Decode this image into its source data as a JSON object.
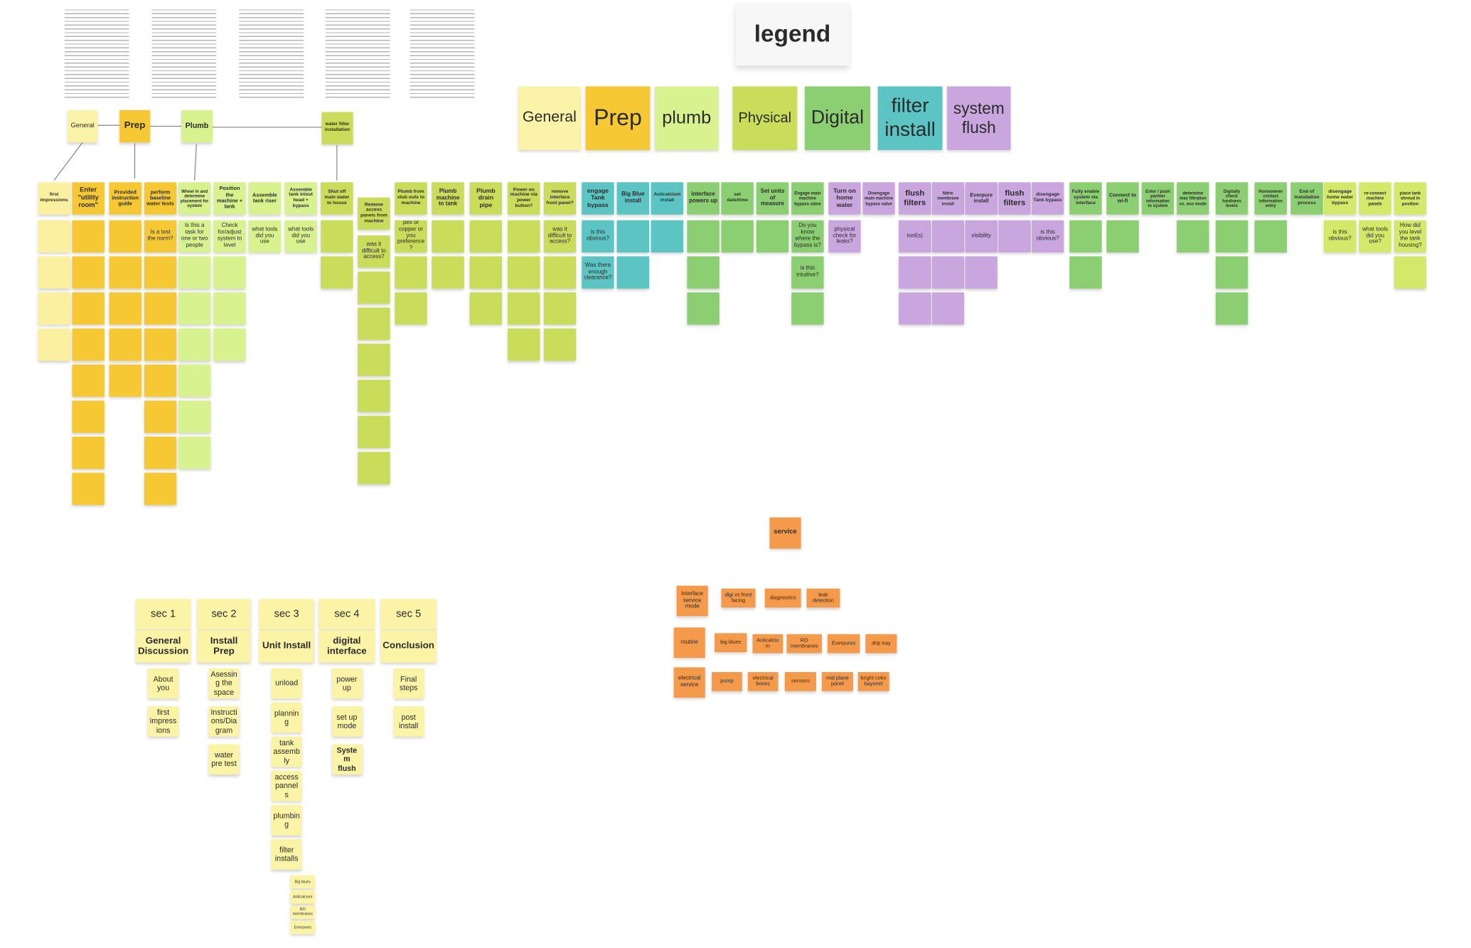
{
  "legend": {
    "title": "legend",
    "items": [
      {
        "label": "General",
        "color": "#fbf4a8"
      },
      {
        "label": "Prep",
        "color": "#f6c934"
      },
      {
        "label": "plumb",
        "color": "#d7f28e"
      },
      {
        "label": "Physical",
        "color": "#c9dd5a"
      },
      {
        "label": "Digital",
        "color": "#8ccf72"
      },
      {
        "label": "filter install",
        "color": "#5cc5c4"
      },
      {
        "label": "system flush",
        "color": "#c9a7de"
      }
    ]
  },
  "flow": [
    {
      "label": "General",
      "color": "#fbf4a8"
    },
    {
      "label": "Prep",
      "color": "#f6c934"
    },
    {
      "label": "Plumb",
      "color": "#d7f28e"
    },
    {
      "label": "water filter installation",
      "color": "#c9dd5a"
    }
  ],
  "columns": [
    {
      "header": "first impressions",
      "color": "#fbf0a0",
      "notes": []
    },
    {
      "header": "Enter \"utility room\"",
      "color": "#f6c934",
      "notes": []
    },
    {
      "header": "Provided instruction guide",
      "color": "#f6c934",
      "notes": []
    },
    {
      "header": "perform baseline water tests",
      "color": "#f6c934",
      "notes": [
        "Is a test the norm?"
      ]
    },
    {
      "header": "Wheel in and determine placement for system",
      "color": "#d7f28e",
      "notes": [
        "Is this a task for one or two people"
      ]
    },
    {
      "header": "Position the machine + tank",
      "color": "#d7f28e",
      "notes": [
        "Check for/adjust system to level"
      ]
    },
    {
      "header": "Assemble tank riser",
      "color": "#d7f28e",
      "notes": [
        "what tools did you use"
      ]
    },
    {
      "header": "Assemble tank in/out head + bypass",
      "color": "#d7f28e",
      "notes": [
        "what tools did you use"
      ]
    },
    {
      "header": "Shut off main water to house",
      "color": "#c9dd5a",
      "notes": []
    },
    {
      "header": "Remove access panels from machine",
      "color": "#c9dd5a",
      "notes": [
        "was it difficult to access?"
      ]
    },
    {
      "header": "Plumb from stub outs to machine",
      "color": "#c9dd5a",
      "notes": [
        "pex or copper or you preference?"
      ]
    },
    {
      "header": "Plumb machine to tank",
      "color": "#c9dd5a",
      "notes": []
    },
    {
      "header": "Plumb drain pipe",
      "color": "#c9dd5a",
      "notes": []
    },
    {
      "header": "Power on machine via power button?",
      "color": "#c9dd5a",
      "notes": []
    },
    {
      "header": "remove interface front panel?",
      "color": "#c9dd5a",
      "notes": [
        "was it difficult to access?"
      ]
    },
    {
      "header": "engage Tank bypass",
      "color": "#5cc5c4",
      "notes": [
        "is this obvious?",
        "Was there enough clearance?"
      ]
    },
    {
      "header": "Big Blue install",
      "color": "#5cc5c4",
      "notes": []
    },
    {
      "header": "Anticalcium install",
      "color": "#5cc5c4",
      "notes": []
    },
    {
      "header": "interface powers up",
      "color": "#8ccf72",
      "notes": []
    },
    {
      "header": "set date/time",
      "color": "#8ccf72",
      "notes": []
    },
    {
      "header": "Set units of measure",
      "color": "#8ccf72",
      "notes": []
    },
    {
      "header": "Engage main machine bypass valve",
      "color": "#8ccf72",
      "notes": [
        "Do you know where the bypass is?",
        "is this intuitive?"
      ]
    },
    {
      "header": "Turn on home water",
      "color": "#c9a7de",
      "notes": [
        "physical check for leaks?"
      ]
    },
    {
      "header": "Disengage main machine bypass valve",
      "color": "#c9a7de",
      "notes": []
    },
    {
      "header": "flush filters",
      "color": "#c9a7de",
      "notes": [
        "tool(s)"
      ]
    },
    {
      "header": "Nitric membrane install",
      "color": "#c9a7de",
      "notes": []
    },
    {
      "header": "Everpure install",
      "color": "#c9a7de",
      "notes": [
        "visibility"
      ]
    },
    {
      "header": "flush filters",
      "color": "#c9a7de",
      "notes": []
    },
    {
      "header": "disengage Tank bypass",
      "color": "#c9a7de",
      "notes": [
        "is this obvious?"
      ]
    },
    {
      "header": "Fully enable system via interface",
      "color": "#8ccf72",
      "notes": []
    },
    {
      "header": "Connect to wi-fi",
      "color": "#8ccf72",
      "notes": []
    },
    {
      "header": "Enter / push partner information to system",
      "color": "#8ccf72",
      "notes": []
    },
    {
      "header": "determine max filtration vs. eco mode",
      "color": "#8ccf72",
      "notes": []
    },
    {
      "header": "Digitally check hardness levels",
      "color": "#8ccf72",
      "notes": []
    },
    {
      "header": "Homeowner contact information entry",
      "color": "#8ccf72",
      "notes": []
    },
    {
      "header": "End of installation process",
      "color": "#8ccf72",
      "notes": []
    },
    {
      "header": "disengage home water bypass",
      "color": "#d4e96a",
      "notes": [
        "is this obvious?"
      ]
    },
    {
      "header": "re-connect machine panels",
      "color": "#d4e96a",
      "notes": [
        "what tools did you use?"
      ]
    },
    {
      "header": "place tank shroud in position",
      "color": "#d4e96a",
      "notes": [
        "How did you level the tank housing?"
      ]
    }
  ],
  "sections": [
    {
      "label": "sec 1",
      "title": "General Discussion",
      "items": [
        "About you",
        "first impressions"
      ]
    },
    {
      "label": "sec 2",
      "title": "Install Prep",
      "items": [
        "Asessing the space",
        "Instructions/Diagram",
        "water pre test"
      ]
    },
    {
      "label": "sec 3",
      "title": "Unit Install",
      "items": [
        "unload",
        "planning",
        "tank assembly",
        "access pannels",
        "plumbing",
        "filter installs"
      ],
      "subitems": [
        "Big blues",
        "Anticalcium",
        "RO membranes",
        "Everpures"
      ]
    },
    {
      "label": "sec 4",
      "title": "digital interface",
      "items": [
        "power up",
        "set up mode",
        "System flush"
      ]
    },
    {
      "label": "sec 5",
      "title": "Conclusion",
      "items": [
        "Final steps",
        "post install"
      ]
    }
  ],
  "service": {
    "title": "service",
    "color": "#f59a4b",
    "rows": [
      [
        "interface service mode",
        "digi vs front facing",
        "diagnostics",
        "leak detection"
      ],
      [
        "routine",
        "big blues",
        "Anticalcium",
        "RO membranes",
        "Everpures",
        "drip tray"
      ],
      [
        "electrical service",
        "pump",
        "electrical boxes",
        "sensors",
        "mid plane panel",
        "bright color bayonet"
      ]
    ]
  }
}
